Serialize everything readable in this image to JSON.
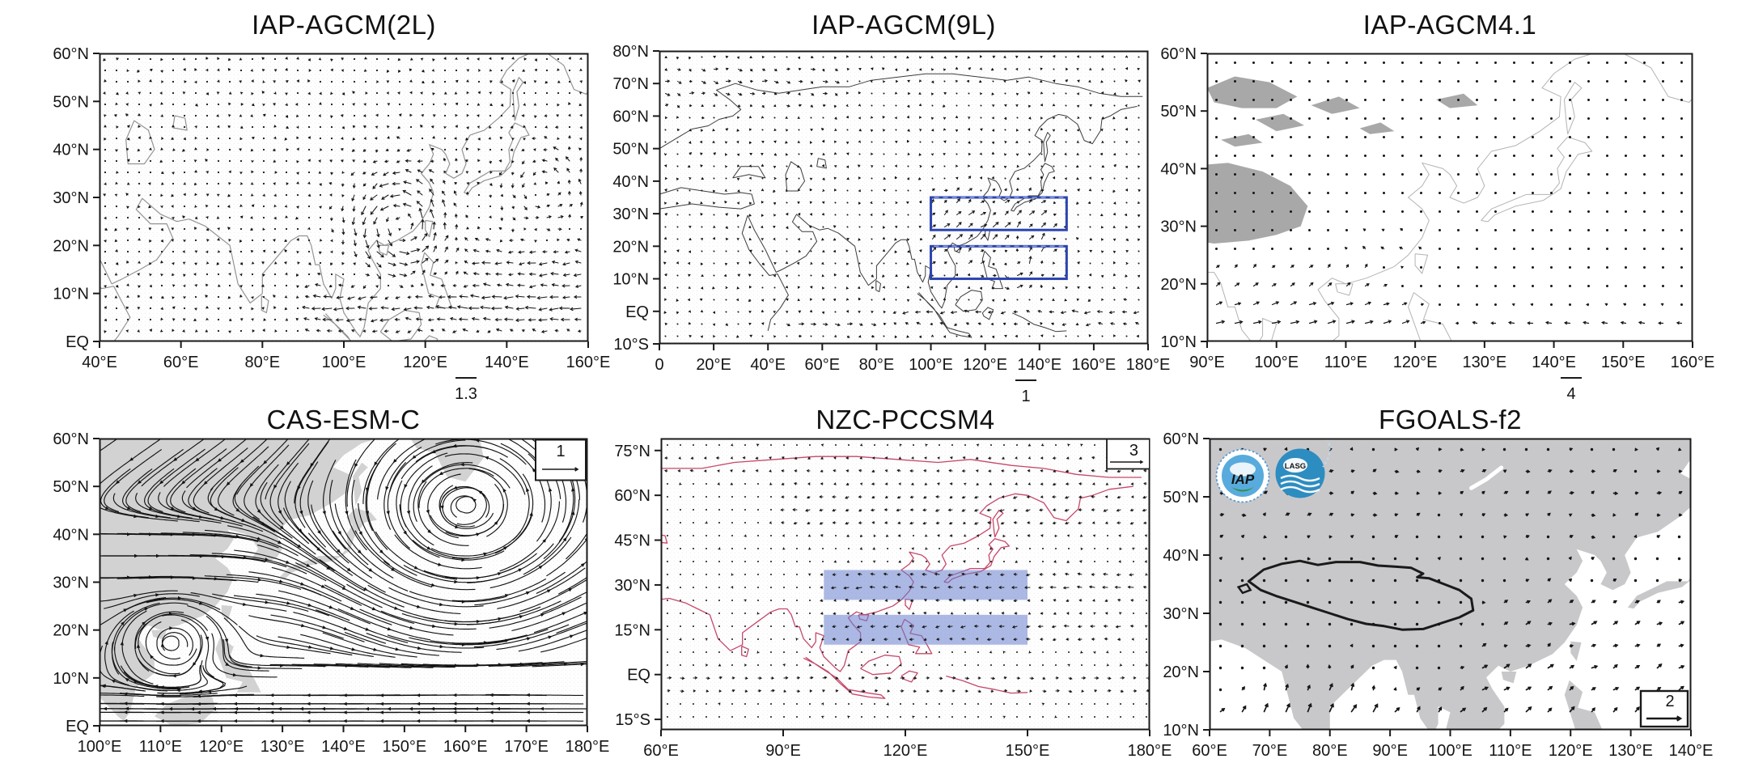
{
  "page": {
    "background": "#ffffff"
  },
  "chart_data": [
    {
      "panel": "top-left",
      "type": "vector_field",
      "title": "IAP-AGCM(2L)",
      "x_axis": {
        "labels": [
          "40°E",
          "60°E",
          "80°E",
          "100°E",
          "120°E",
          "140°E",
          "160°E"
        ],
        "values": [
          40,
          60,
          80,
          100,
          120,
          140,
          160
        ],
        "range": [
          40,
          160
        ]
      },
      "y_axis": {
        "labels": [
          "60°N",
          "50°N",
          "40°N",
          "30°N",
          "20°N",
          "10°N",
          "EQ"
        ],
        "values": [
          60,
          50,
          40,
          30,
          20,
          10,
          0
        ],
        "range": [
          0,
          60
        ]
      },
      "reference_vector": {
        "value": "1.3",
        "placement": "below-axis",
        "frac_x": 0.75
      },
      "style": {
        "coast": "#949494",
        "coast_width": 1.2,
        "stipple": true
      },
      "field": {
        "grid": 14,
        "seed": 7,
        "noise": 2.2,
        "maxlen": 15,
        "dot": 1.3,
        "dot_r": 1.1,
        "width": 1.05,
        "head": 3.2,
        "features": [
          {
            "k": "vortex",
            "lon": 114,
            "lat": 24,
            "r": 10,
            "s": 12,
            "rot": "ccw"
          },
          {
            "k": "vortex",
            "lon": 149,
            "lat": 32,
            "r": 8,
            "s": 6,
            "rot": "ccw"
          },
          {
            "k": "band",
            "lat": 7,
            "hw": 5,
            "lon0": 88,
            "lon1": 166,
            "u": -11,
            "v": 0
          },
          {
            "k": "band",
            "lat": 17,
            "hw": 5,
            "lon0": 128,
            "lon1": 166,
            "u": -8,
            "v": 0
          },
          {
            "k": "damp",
            "lon": 70,
            "lat": 40,
            "r": 28,
            "f": 0.5
          }
        ]
      },
      "notes": "dense 850hPa wind anomaly vectors; cyclonic circulation near 115°E 25°N; easterly band 5–12°N"
    },
    {
      "panel": "top-middle",
      "type": "vector_field",
      "title": "IAP-AGCM(9L)",
      "x_axis": {
        "labels": [
          "0",
          "20°E",
          "40°E",
          "60°E",
          "80°E",
          "100°E",
          "120°E",
          "140°E",
          "160°E",
          "180°E"
        ],
        "values": [
          0,
          20,
          40,
          60,
          80,
          100,
          120,
          140,
          160,
          180
        ],
        "range": [
          0,
          180
        ]
      },
      "y_axis": {
        "labels": [
          "80°N",
          "70°N",
          "60°N",
          "50°N",
          "40°N",
          "30°N",
          "20°N",
          "10°N",
          "EQ",
          "10°S"
        ],
        "values": [
          80,
          70,
          60,
          50,
          40,
          30,
          20,
          10,
          0,
          -10
        ],
        "range": [
          -10,
          80
        ]
      },
      "reference_vector": {
        "value": "1",
        "placement": "below-axis",
        "frac_x": 0.75
      },
      "style": {
        "coast": "#3c3c3c",
        "coast_width": 1,
        "stipple": true
      },
      "annotations": {
        "outline_boxes": [
          {
            "lon0": 100,
            "lon1": 150,
            "lat0": 25,
            "lat1": 35
          },
          {
            "lon0": 100,
            "lon1": 150,
            "lat0": 10,
            "lat1": 20
          }
        ],
        "box_color": "#2b43ae"
      },
      "field": {
        "grid": 15,
        "seed": 13,
        "noise": 2.0,
        "maxlen": 12,
        "dot": 1.2,
        "dot_r": 1.0,
        "width": 1.0,
        "head": 3.0,
        "features": [
          {
            "k": "band",
            "lat": 25,
            "hw": 11,
            "lon0": 96,
            "lon1": 148,
            "u": 6,
            "v": 5
          },
          {
            "k": "vortex",
            "lon": 131,
            "lat": 14,
            "r": 7,
            "s": 6,
            "rot": "ccw"
          },
          {
            "k": "band",
            "lat": -1,
            "hw": 4,
            "lon0": 85,
            "lon1": 186,
            "u": -6,
            "v": 0
          },
          {
            "k": "band",
            "lat": -5,
            "hw": 3,
            "lon0": 40,
            "lon1": 85,
            "u": 5,
            "v": 0
          },
          {
            "k": "band",
            "lat": 70,
            "hw": 8,
            "lon0": -6,
            "lon1": 70,
            "u": 4,
            "v": -1
          },
          {
            "k": "damp",
            "lon": 60,
            "lat": 45,
            "r": 30,
            "f": 0.6
          }
        ]
      },
      "notes": "southwesterly anomaly jet over East Asia toward the two blue study boxes (100–150°E, 25–35°N and 10–20°N)"
    },
    {
      "panel": "top-right",
      "type": "vector_field",
      "title": "IAP-AGCM4.1",
      "x_axis": {
        "labels": [
          "90°E",
          "100°E",
          "110°E",
          "120°E",
          "130°E",
          "140°E",
          "150°E",
          "160°E"
        ],
        "values": [
          90,
          100,
          110,
          120,
          130,
          140,
          150,
          160
        ],
        "range": [
          90,
          160
        ]
      },
      "y_axis": {
        "labels": [
          "60°N",
          "50°N",
          "40°N",
          "30°N",
          "20°N",
          "10°N"
        ],
        "values": [
          60,
          50,
          40,
          30,
          20,
          10
        ],
        "range": [
          10,
          60
        ]
      },
      "reference_vector": {
        "value": "4",
        "placement": "below-axis",
        "frac_x": 0.75
      },
      "style": {
        "coast": "#b3b3b3",
        "coast_width": 1,
        "stipple": false,
        "land": {
          "shapes": [
            "tibet3",
            "nw1",
            "nw2",
            "nw3",
            "nw4",
            "nw5",
            "nw6"
          ],
          "fill": "#a8a8a8"
        }
      },
      "field": {
        "grid": 23,
        "seed": 5,
        "noise": 0.8,
        "maxlen": 13,
        "dot": 1.8,
        "dot_r": 1.5,
        "width": 1.2,
        "head": 3.4,
        "features": [
          {
            "k": "band",
            "lat": 13.5,
            "hw": 4.5,
            "lon0": 84,
            "lon1": 124,
            "u": 9,
            "v": 2.5
          },
          {
            "k": "band",
            "lat": 12.5,
            "hw": 3.5,
            "lon0": 124,
            "lon1": 166,
            "u": -6,
            "v": 1
          },
          {
            "k": "band",
            "lat": 21,
            "hw": 4,
            "lon0": 84,
            "lon1": 118,
            "u": 4,
            "v": 3.5
          },
          {
            "k": "band",
            "lat": 27,
            "hw": 4,
            "lon0": 106,
            "lon1": 126,
            "u": -3,
            "v": 2
          },
          {
            "k": "damp",
            "lon": 96,
            "lat": 34,
            "r": 10,
            "f": 0.3
          }
        ]
      },
      "notes": "mostly weak vectors (dots); stronger southwesterlies south of 20°N; gray shaded Tibetan Plateau terrain"
    },
    {
      "panel": "bottom-left",
      "type": "vector_field",
      "title": "CAS-ESM-C",
      "x_axis": {
        "labels": [
          "100°E",
          "110°E",
          "120°E",
          "130°E",
          "140°E",
          "150°E",
          "160°E",
          "170°E",
          "180°E"
        ],
        "values": [
          100,
          110,
          120,
          130,
          140,
          150,
          160,
          170,
          180
        ],
        "range": [
          100,
          180
        ]
      },
      "y_axis": {
        "labels": [
          "60°N",
          "50°N",
          "40°N",
          "30°N",
          "20°N",
          "10°N",
          "EQ"
        ],
        "values": [
          60,
          50,
          40,
          30,
          20,
          10,
          0
        ],
        "range": [
          0,
          60
        ]
      },
      "reference_vector": {
        "value": "1",
        "placement": "in-plot-box",
        "corner": "top-right",
        "closed": true
      },
      "style": {
        "coast": null,
        "stipple": true,
        "land": {
          "shapes": [
            "asia",
            "kamchatka",
            "sakhalin",
            "japan",
            "taiwan",
            "hainan",
            "phil",
            "borneo"
          ],
          "fill": "#d2d2d2"
        }
      },
      "render": "streamlines",
      "field": {
        "grid": 27,
        "seed": 3,
        "noise": 0.6,
        "step": 3.1,
        "fsteps": 26,
        "bsteps": 13,
        "width": 1.15,
        "features": [
          {
            "k": "vortex",
            "lon": 160,
            "lat": 45,
            "r": 17,
            "s": 15,
            "rot": "ccw"
          },
          {
            "k": "vortex",
            "lon": 112,
            "lat": 17.5,
            "r": 6.5,
            "s": 12,
            "rot": "cw"
          },
          {
            "k": "band",
            "lat": 4,
            "hw": 3.5,
            "lon0": 94,
            "lon1": 186,
            "u": -15,
            "v": 0
          },
          {
            "k": "band",
            "lat": 11,
            "hw": 3,
            "lon0": 112,
            "lon1": 186,
            "u": 8,
            "v": 0
          },
          {
            "k": "band",
            "lat": 33,
            "hw": 13,
            "lon0": 94,
            "lon1": 186,
            "u": 4,
            "v": 0
          },
          {
            "k": "band",
            "lat": 54,
            "hw": 7,
            "lon0": 94,
            "lon1": 140,
            "u": -3,
            "v": -2
          }
        ]
      },
      "notes": "streamlines: cyclonic gyre near 160°E 45°N, closed eddy near 112°E 18°N, dense easterly flow along the equator"
    },
    {
      "panel": "bottom-middle",
      "type": "vector_field",
      "title": "NZC-PCCSM4",
      "x_axis": {
        "labels": [
          "60°E",
          "90°E",
          "120°E",
          "150°E",
          "180°E"
        ],
        "values": [
          60,
          90,
          120,
          150,
          180
        ],
        "range": [
          60,
          180
        ]
      },
      "y_axis": {
        "labels": [
          "75°N",
          "60°N",
          "45°N",
          "30°N",
          "15°N",
          "EQ",
          "15°S"
        ],
        "values": [
          75,
          60,
          45,
          30,
          15,
          0,
          -15
        ],
        "range": [
          -18.5,
          79
        ]
      },
      "reference_vector": {
        "value": "3",
        "placement": "in-plot-box",
        "corner": "top-right",
        "closed": false
      },
      "style": {
        "coast": "#c5486a",
        "coast_width": 1.3,
        "stipple": true
      },
      "annotations": {
        "filled_boxes": [
          {
            "lon0": 100,
            "lon1": 150,
            "lat0": 25,
            "lat1": 35
          },
          {
            "lon0": 100,
            "lon1": 150,
            "lat0": 10,
            "lat1": 20
          }
        ],
        "box_fill": "rgba(104,128,205,0.55)"
      },
      "field": {
        "grid": 16,
        "seed": 21,
        "noise": 1.1,
        "maxlen": 8,
        "dot": 1.15,
        "dot_r": 1.0,
        "width": 1.0,
        "head": 2.6,
        "features": [
          {
            "k": "band",
            "lat": 30,
            "hw": 6,
            "lon0": 96,
            "lon1": 182,
            "u": -6,
            "v": 0
          },
          {
            "k": "band",
            "lat": 15,
            "hw": 5,
            "lon0": 96,
            "lon1": 180,
            "u": -5,
            "v": -0.5
          },
          {
            "k": "band",
            "lat": 55,
            "hw": 9,
            "lon0": 86,
            "lon1": 186,
            "u": -4,
            "v": -1
          },
          {
            "k": "band",
            "lat": -3,
            "hw": 4,
            "lon0": 54,
            "lon1": 186,
            "u": 4.5,
            "v": 0
          },
          {
            "k": "band",
            "lat": 70,
            "hw": 5,
            "lon0": 54,
            "lon1": 186,
            "u": -3,
            "v": 0
          }
        ]
      },
      "notes": "small dot-like vectors; easterly anomalies through the two blue-shaded boxes (100–150°E, 25–35°N and 10–20°N); red coastlines"
    },
    {
      "panel": "bottom-right",
      "type": "vector_field",
      "title": "FGOALS-f2",
      "x_axis": {
        "labels": [
          "60°E",
          "70°E",
          "80°E",
          "90°E",
          "100°E",
          "110°E",
          "120°E",
          "130°E",
          "140°E"
        ],
        "values": [
          60,
          70,
          80,
          90,
          100,
          110,
          120,
          130,
          140
        ],
        "range": [
          60,
          140
        ]
      },
      "y_axis": {
        "labels": [
          "60°N",
          "50°N",
          "40°N",
          "30°N",
          "20°N",
          "10°N"
        ],
        "values": [
          60,
          50,
          40,
          30,
          20,
          10
        ],
        "range": [
          10,
          60
        ]
      },
      "reference_vector": {
        "value": "2",
        "placement": "in-plot-box",
        "corner": "bottom-right",
        "closed": true
      },
      "style": {
        "coast": null,
        "stipple": false,
        "land": {
          "shapes": [
            "asia",
            "japan",
            "taiwan",
            "hainan",
            "sri",
            "phil"
          ],
          "fill": "#c8c8cb"
        },
        "plateau_outline": "tibet6",
        "plateau_color": "#1a1a1a"
      },
      "annotations": {
        "logos": [
          {
            "text": "IAP"
          },
          {
            "text": "LASG"
          }
        ]
      },
      "field": {
        "grid": 27,
        "seed": 9,
        "noise": 1.4,
        "maxlen": 10,
        "dot": 1.6,
        "dot_r": 1.7,
        "width": 1.7,
        "head": 3.8,
        "features": [
          {
            "k": "band",
            "lat": 12,
            "hw": 4.5,
            "lon0": 54,
            "lon1": 146,
            "u": 4,
            "v": 4.5
          },
          {
            "k": "band",
            "lat": 20,
            "hw": 5,
            "lon0": 98,
            "lon1": 146,
            "u": 5,
            "v": 3
          },
          {
            "k": "band",
            "lat": 30,
            "hw": 5,
            "lon0": 104,
            "lon1": 146,
            "u": 4.5,
            "v": 2
          },
          {
            "k": "band",
            "lat": 15,
            "hw": 6,
            "lon0": 62,
            "lon1": 92,
            "u": 1,
            "v": 5.5
          },
          {
            "k": "band",
            "lat": 50,
            "hw": 9,
            "lon0": 54,
            "lon1": 146,
            "u": 3,
            "v": 0.8
          },
          {
            "k": "damp",
            "lon": 88,
            "lat": 33,
            "r": 13,
            "f": 0.3
          }
        ]
      },
      "notes": "thick short vectors over gray land; Tibetan Plateau outlined in black; IAP and LASG logos top-left"
    }
  ]
}
